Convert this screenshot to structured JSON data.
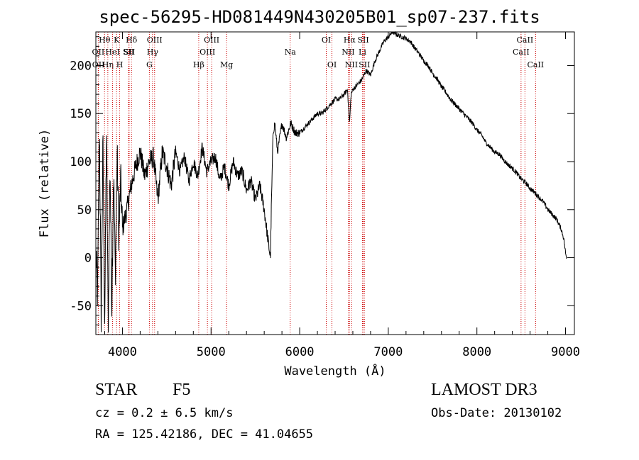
{
  "chart_data": {
    "type": "line",
    "title": "spec-56295-HD081449N430205B01_sp07-237.fits",
    "xlabel": "Wavelength (Å)",
    "ylabel": "Flux (relative)",
    "xlim": [
      3700,
      9100
    ],
    "ylim": [
      -80,
      235
    ],
    "x_ticks": [
      4000,
      5000,
      6000,
      7000,
      8000,
      9000
    ],
    "y_ticks": [
      -50,
      0,
      50,
      100,
      150,
      200
    ],
    "series": [
      {
        "name": "flux",
        "x": [
          3700,
          3720,
          3740,
          3760,
          3780,
          3800,
          3820,
          3840,
          3860,
          3880,
          3900,
          3920,
          3940,
          3960,
          3980,
          4000,
          4050,
          4100,
          4150,
          4200,
          4250,
          4300,
          4350,
          4400,
          4450,
          4500,
          4550,
          4600,
          4650,
          4700,
          4750,
          4800,
          4850,
          4900,
          4950,
          5000,
          5050,
          5100,
          5150,
          5200,
          5250,
          5300,
          5350,
          5400,
          5450,
          5500,
          5550,
          5600,
          5640,
          5670,
          5680,
          5700,
          5720,
          5750,
          5800,
          5850,
          5900,
          5950,
          6000,
          6050,
          6100,
          6150,
          6200,
          6250,
          6300,
          6350,
          6400,
          6450,
          6500,
          6540,
          6563,
          6580,
          6600,
          6650,
          6700,
          6750,
          6800,
          6850,
          6900,
          6950,
          7000,
          7050,
          7100,
          7150,
          7200,
          7250,
          7300,
          7350,
          7400,
          7450,
          7500,
          7550,
          7600,
          7650,
          7700,
          7750,
          7800,
          7850,
          7900,
          7950,
          8000,
          8050,
          8100,
          8150,
          8200,
          8250,
          8300,
          8350,
          8400,
          8450,
          8500,
          8550,
          8600,
          8650,
          8700,
          8750,
          8800,
          8850,
          8900,
          8950,
          8980,
          9000,
          9010
        ],
        "y": [
          5,
          -40,
          140,
          -60,
          120,
          -70,
          130,
          -75,
          100,
          -50,
          90,
          -20,
          110,
          20,
          80,
          30,
          50,
          75,
          95,
          110,
          85,
          100,
          105,
          60,
          110,
          95,
          75,
          110,
          90,
          105,
          80,
          100,
          85,
          115,
          90,
          100,
          105,
          80,
          95,
          75,
          100,
          85,
          90,
          70,
          80,
          60,
          75,
          50,
          20,
          0,
          50,
          130,
          140,
          110,
          140,
          125,
          140,
          130,
          130,
          135,
          140,
          145,
          150,
          150,
          155,
          160,
          165,
          165,
          170,
          175,
          140,
          170,
          175,
          180,
          185,
          195,
          190,
          205,
          215,
          225,
          230,
          235,
          232,
          230,
          228,
          225,
          218,
          212,
          205,
          200,
          192,
          186,
          178,
          172,
          165,
          160,
          155,
          150,
          145,
          140,
          133,
          128,
          120,
          115,
          110,
          108,
          102,
          97,
          93,
          88,
          82,
          78,
          72,
          68,
          63,
          58,
          50,
          45,
          40,
          30,
          20,
          5,
          0
        ]
      }
    ],
    "line_markers": [
      {
        "label": "Hθ",
        "x": 3798,
        "row": 0
      },
      {
        "label": "OII",
        "x": 3727,
        "row": 1
      },
      {
        "label": "OII",
        "x": 3729,
        "row": 2
      },
      {
        "label": "Hη",
        "x": 3835,
        "row": 2
      },
      {
        "label": "HeI",
        "x": 3889,
        "row": 1
      },
      {
        "label": "K",
        "x": 3934,
        "row": 0
      },
      {
        "label": "H",
        "x": 3969,
        "row": 2
      },
      {
        "label": "SII",
        "x": 4069,
        "row": 1
      },
      {
        "label": "Hδ",
        "x": 4102,
        "row": 0
      },
      {
        "label": "SII",
        "x": 4076,
        "row": 1
      },
      {
        "label": "OIII",
        "x": 4363,
        "row": 0
      },
      {
        "label": "Hγ",
        "x": 4340,
        "row": 1
      },
      {
        "label": "G",
        "x": 4304,
        "row": 2
      },
      {
        "label": "Hβ",
        "x": 4861,
        "row": 2
      },
      {
        "label": "OIII",
        "x": 5007,
        "row": 0
      },
      {
        "label": "OIII",
        "x": 4959,
        "row": 1
      },
      {
        "label": "Mg",
        "x": 5175,
        "row": 2
      },
      {
        "label": "Na",
        "x": 5893,
        "row": 1
      },
      {
        "label": "OI",
        "x": 6300,
        "row": 0
      },
      {
        "label": "OI",
        "x": 6364,
        "row": 2
      },
      {
        "label": "Hα",
        "x": 6563,
        "row": 0
      },
      {
        "label": "NII",
        "x": 6548,
        "row": 1
      },
      {
        "label": "NII",
        "x": 6584,
        "row": 2
      },
      {
        "label": "SII",
        "x": 6717,
        "row": 0
      },
      {
        "label": "Li",
        "x": 6708,
        "row": 1
      },
      {
        "label": "SII",
        "x": 6731,
        "row": 2
      },
      {
        "label": "CaII",
        "x": 8498,
        "row": 1
      },
      {
        "label": "CaII",
        "x": 8542,
        "row": 0
      },
      {
        "label": "CaII",
        "x": 8662,
        "row": 2
      }
    ]
  },
  "info": {
    "object_class": "STAR",
    "subclass": "F5",
    "survey": "LAMOST DR3",
    "cz": "cz = 0.2 ± 6.5 km/s",
    "obs_date": "Obs-Date: 20130102",
    "coords": "RA = 125.42186, DEC =  41.04655"
  }
}
